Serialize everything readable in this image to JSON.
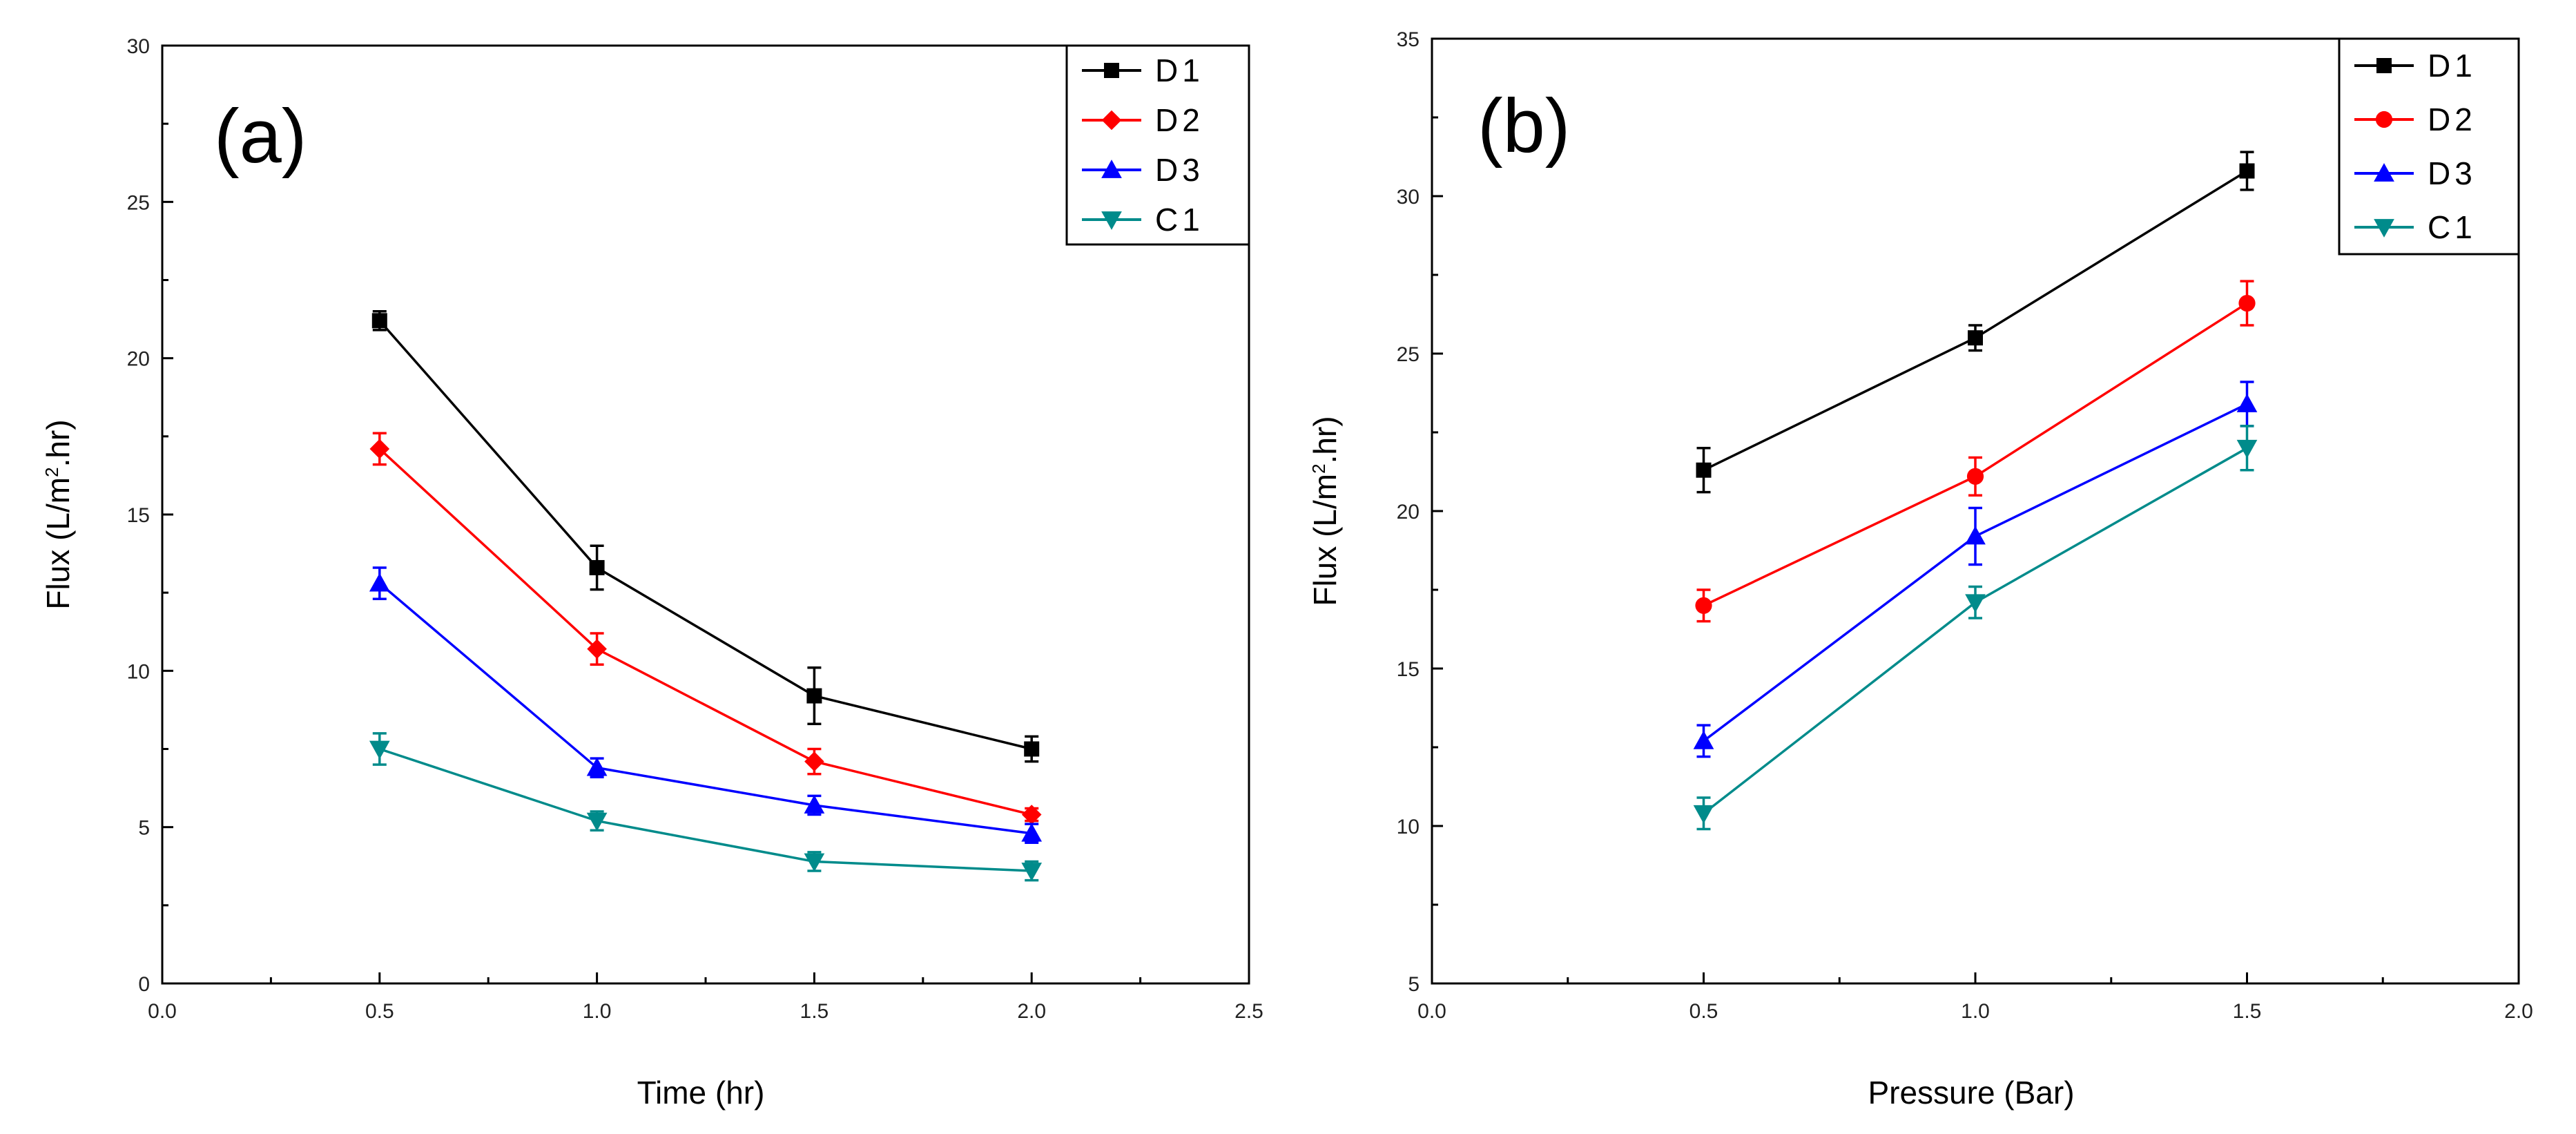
{
  "chart_data": [
    {
      "type": "line",
      "panel_label": "(a)",
      "xlabel": "Time (hr)",
      "ylabel_main": "Flux (L/m",
      "ylabel_sup": "2",
      "ylabel_end": ".hr)",
      "xlim": [
        0.0,
        2.5
      ],
      "ylim": [
        0,
        30
      ],
      "xticks": [
        0.0,
        0.5,
        1.0,
        1.5,
        2.0,
        2.5
      ],
      "xtick_labels": [
        "0.0",
        "0.5",
        "1.0",
        "1.5",
        "2.0",
        "2.5"
      ],
      "yticks": [
        0,
        5,
        10,
        15,
        20,
        25,
        30
      ],
      "ytick_labels": [
        "0",
        "5",
        "10",
        "15",
        "20",
        "25",
        "30"
      ],
      "legend_position": "top-right",
      "x": [
        0.5,
        1.0,
        1.5,
        2.0
      ],
      "series": [
        {
          "name": "D1",
          "color": "#000000",
          "marker": "square",
          "values": [
            21.2,
            13.3,
            9.2,
            7.5
          ],
          "errors": [
            0.3,
            0.7,
            0.9,
            0.4
          ]
        },
        {
          "name": "D2",
          "color": "#ff0000",
          "marker": "diamond",
          "values": [
            17.1,
            10.7,
            7.1,
            5.4
          ],
          "errors": [
            0.5,
            0.5,
            0.4,
            0.2
          ]
        },
        {
          "name": "D3",
          "color": "#0000ff",
          "marker": "triangle-up",
          "values": [
            12.8,
            6.9,
            5.7,
            4.8
          ],
          "errors": [
            0.5,
            0.3,
            0.3,
            0.3
          ]
        },
        {
          "name": "C1",
          "color": "#008b8b",
          "marker": "triangle-down",
          "values": [
            7.5,
            5.2,
            3.9,
            3.6
          ],
          "errors": [
            0.5,
            0.3,
            0.3,
            0.3
          ]
        }
      ]
    },
    {
      "type": "line",
      "panel_label": "(b)",
      "xlabel": "Pressure (Bar)",
      "ylabel_main": "Flux (L/m",
      "ylabel_sup": "2",
      "ylabel_end": ".hr)",
      "xlim": [
        0.0,
        2.0
      ],
      "ylim": [
        5,
        35
      ],
      "xticks": [
        0.0,
        0.5,
        1.0,
        1.5,
        2.0
      ],
      "xtick_labels": [
        "0.0",
        "0.5",
        "1.0",
        "1.5",
        "2.0"
      ],
      "yticks": [
        5,
        10,
        15,
        20,
        25,
        30,
        35
      ],
      "ytick_labels": [
        "5",
        "10",
        "15",
        "20",
        "25",
        "30",
        "35"
      ],
      "legend_position": "top-right",
      "x": [
        0.5,
        1.0,
        1.5
      ],
      "series": [
        {
          "name": "D1",
          "color": "#000000",
          "marker": "square",
          "values": [
            21.3,
            25.5,
            30.8
          ],
          "errors": [
            0.7,
            0.4,
            0.6
          ]
        },
        {
          "name": "D2",
          "color": "#ff0000",
          "marker": "circle",
          "values": [
            17.0,
            21.1,
            26.6
          ],
          "errors": [
            0.5,
            0.6,
            0.7
          ]
        },
        {
          "name": "D3",
          "color": "#0000ff",
          "marker": "triangle-up",
          "values": [
            12.7,
            19.2,
            23.4
          ],
          "errors": [
            0.5,
            0.9,
            0.7
          ]
        },
        {
          "name": "C1",
          "color": "#008b8b",
          "marker": "triangle-down",
          "values": [
            10.4,
            17.1,
            22.0
          ],
          "errors": [
            0.5,
            0.5,
            0.7
          ]
        }
      ]
    }
  ]
}
